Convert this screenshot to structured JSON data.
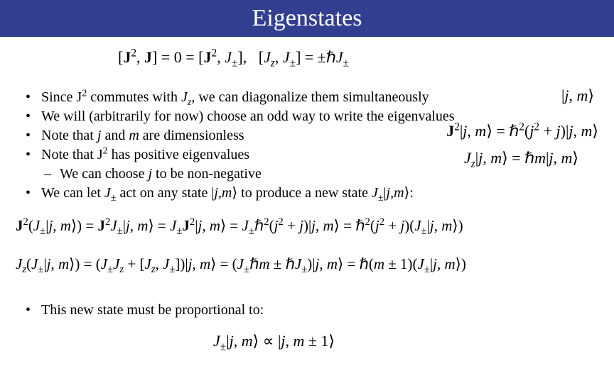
{
  "title": "Eigenstates",
  "colors": {
    "title_bg": "#323f91",
    "title_fg": "#ffffff",
    "body_bg": "#ffffff",
    "text": "#000000"
  },
  "typography": {
    "title_fontsize": 34,
    "body_fontsize": 20,
    "math_fontsize": 22,
    "font_family": "Times New Roman"
  },
  "eq_top": "[J², J] = 0 = [J², J±],   [Jz, J±] = ±ℏJ±",
  "bullets": [
    "Since J² commutes with Jz, we can diagonalize them simultaneously",
    "We will (arbitrarily for now) choose an odd way to write the eigenvalues",
    "Note that j and m are dimensionless",
    "Note that J² has positive eigenvalues"
  ],
  "sub_bullet": "We can choose j to be non-negative",
  "bullet_5": "We can let J± act on any state |j,m⟩ to produce a new state J±|j,m⟩:",
  "eq_right_1": "|j, m⟩",
  "eq_right_2": "J²|j, m⟩ = ℏ²(j² + j)|j, m⟩",
  "eq_right_3": "Jz|j, m⟩ = ℏm|j, m⟩",
  "eq_long_1": "J²(J±|j, m⟩) = J²J±|j, m⟩ = J±J²|j, m⟩ = J±ℏ²(j² + j)|j, m⟩ = ℏ²(j² + j)(J±|j, m⟩)",
  "eq_long_2": "Jz(J±|j, m⟩) = (J±Jz + [Jz, J±])|j, m⟩ = (J±ℏm ± ℏJ±)|j, m⟩ = ℏ(m ± 1)(J±|j, m⟩)",
  "bullet_final": "This new state must be proportional to:",
  "eq_bottom": "J±|j, m⟩ ∝ |j, m ± 1⟩"
}
